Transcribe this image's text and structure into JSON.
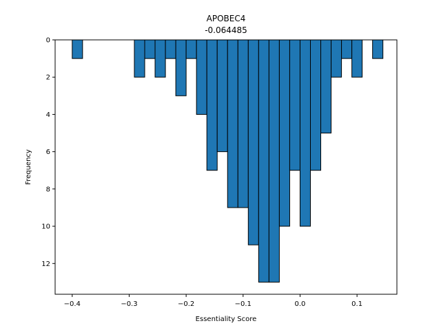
{
  "chart_data": {
    "type": "bar",
    "title": "APOBEC4",
    "subtitle": "-0.064485",
    "xlabel": "Essentiality Score",
    "ylabel": "Frequency",
    "xlim": [
      -0.43,
      0.17
    ],
    "ylim": [
      0,
      13.65
    ],
    "y_inverted": true,
    "grid": false,
    "bar_color": "#1f77b4",
    "edge_color": "#000000",
    "x_ticks": [
      -0.4,
      -0.3,
      -0.2,
      -0.1,
      0.0,
      0.1
    ],
    "x_tick_labels": [
      "−0.4",
      "−0.3",
      "−0.2",
      "−0.1",
      "0.0",
      "0.1"
    ],
    "y_ticks": [
      0,
      2,
      4,
      6,
      8,
      10,
      12
    ],
    "y_tick_labels": [
      "0",
      "2",
      "4",
      "6",
      "8",
      "10",
      "12"
    ],
    "bin_width": 0.01818,
    "bins": [
      {
        "x": -0.4,
        "count": 1
      },
      {
        "x": -0.29091,
        "count": 2
      },
      {
        "x": -0.27273,
        "count": 1
      },
      {
        "x": -0.25455,
        "count": 2
      },
      {
        "x": -0.23636,
        "count": 1
      },
      {
        "x": -0.21818,
        "count": 3
      },
      {
        "x": -0.2,
        "count": 1
      },
      {
        "x": -0.18182,
        "count": 4
      },
      {
        "x": -0.16364,
        "count": 7
      },
      {
        "x": -0.14545,
        "count": 6
      },
      {
        "x": -0.12727,
        "count": 9
      },
      {
        "x": -0.10909,
        "count": 9
      },
      {
        "x": -0.09091,
        "count": 11
      },
      {
        "x": -0.07273,
        "count": 13
      },
      {
        "x": -0.05455,
        "count": 13
      },
      {
        "x": -0.03636,
        "count": 10
      },
      {
        "x": -0.01818,
        "count": 7
      },
      {
        "x": 0.0,
        "count": 10
      },
      {
        "x": 0.01818,
        "count": 7
      },
      {
        "x": 0.03636,
        "count": 5
      },
      {
        "x": 0.05455,
        "count": 2
      },
      {
        "x": 0.07273,
        "count": 1
      },
      {
        "x": 0.09091,
        "count": 2
      },
      {
        "x": 0.12727,
        "count": 1
      }
    ]
  }
}
